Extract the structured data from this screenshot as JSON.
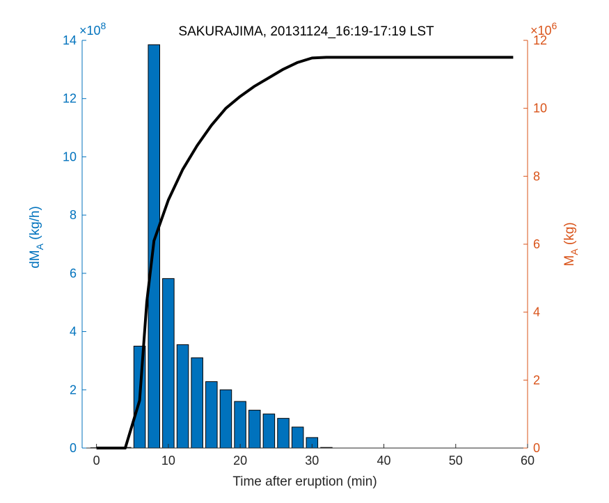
{
  "chart_data": {
    "type": "bar",
    "title": "SAKURAJIMA, 20131124_16:19-17:19 LST",
    "xlabel": "Time after eruption (min)",
    "xlim": [
      -2,
      60
    ],
    "xticks": [
      0,
      10,
      20,
      30,
      40,
      50,
      60
    ],
    "left_axis": {
      "label_main": "dM",
      "label_sub": "A",
      "label_unit": " (kg/h)",
      "exponent_text": "×10",
      "exponent_power": "8",
      "ylim": [
        0,
        14
      ],
      "ticks": [
        0,
        2,
        4,
        6,
        8,
        10,
        12,
        14
      ],
      "color": "#0072BD"
    },
    "right_axis": {
      "label_main": "M",
      "label_sub": "A",
      "label_unit": " (kg)",
      "exponent_text": "×10",
      "exponent_power": "6",
      "ylim": [
        0,
        12
      ],
      "ticks": [
        0,
        2,
        4,
        6,
        8,
        10,
        12
      ],
      "color": "#D95319"
    },
    "bars": {
      "name": "dMA",
      "color": "#0072BD",
      "x": [
        0,
        2,
        4,
        6,
        8,
        10,
        12,
        14,
        16,
        18,
        20,
        22,
        24,
        26,
        28,
        30,
        32
      ],
      "values": [
        0.01,
        0.01,
        0.02,
        3.5,
        13.85,
        5.82,
        3.55,
        3.1,
        2.28,
        2.0,
        1.6,
        1.3,
        1.17,
        1.02,
        0.72,
        0.36,
        0.02
      ]
    },
    "line": {
      "name": "MA",
      "color": "#000000",
      "x": [
        0,
        2,
        4,
        6,
        7,
        8,
        10,
        12,
        14,
        16,
        18,
        20,
        22,
        24,
        26,
        28,
        30,
        32,
        34,
        36,
        38,
        40,
        42,
        44,
        46,
        48,
        50,
        52,
        54,
        56,
        58
      ],
      "values": [
        0,
        0,
        0,
        1.4,
        4.3,
        6.1,
        7.3,
        8.2,
        8.9,
        9.5,
        10.0,
        10.35,
        10.65,
        10.9,
        11.15,
        11.35,
        11.48,
        11.5,
        11.5,
        11.5,
        11.5,
        11.5,
        11.5,
        11.5,
        11.5,
        11.5,
        11.5,
        11.5,
        11.5,
        11.5,
        11.5
      ]
    }
  }
}
